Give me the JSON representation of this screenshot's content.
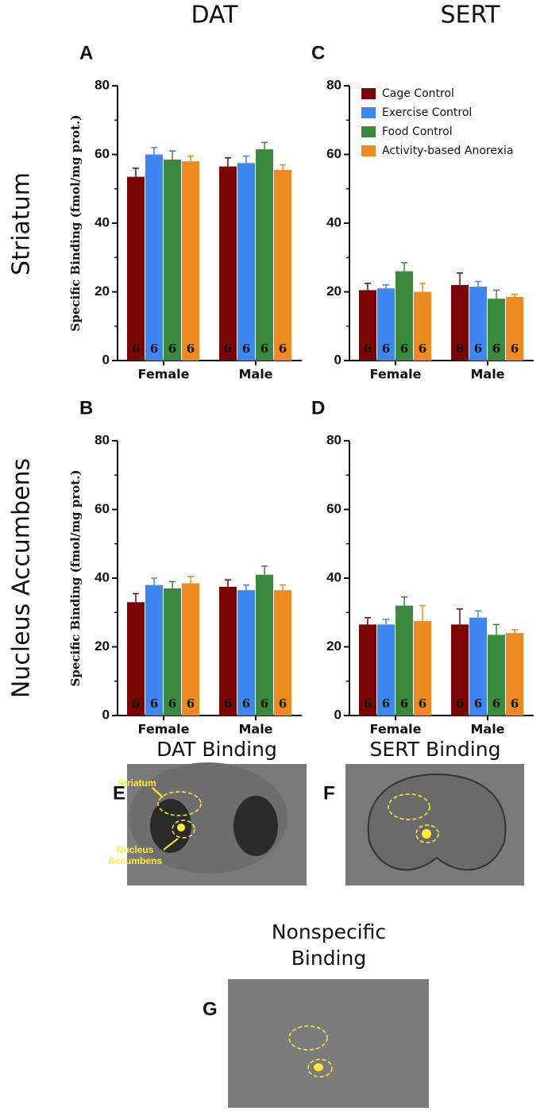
{
  "column_headers": [
    "DAT",
    "SERT"
  ],
  "row_headers": [
    "Striatum",
    "Nucleus Accumbens"
  ],
  "chart_data": [
    {
      "type": "bar",
      "panel": "A",
      "y_label": "Specific Binding (fmol/mg prot.)",
      "categories": [
        "Female",
        "Male"
      ],
      "ylim": [
        0,
        80
      ],
      "yticks": [
        0,
        20,
        40,
        60,
        80
      ],
      "yticks_minor": [
        10,
        30,
        50,
        70
      ],
      "series": [
        {
          "name": "Cage Control",
          "color": "#7b0505",
          "values": [
            53.5,
            56.5
          ],
          "errors": [
            2.5,
            2.5
          ],
          "n": [
            6,
            6
          ]
        },
        {
          "name": "Exercise Control",
          "color": "#3f86f3",
          "values": [
            60,
            57.5
          ],
          "errors": [
            2,
            2
          ],
          "n": [
            6,
            6
          ]
        },
        {
          "name": "Food Control",
          "color": "#3a893d",
          "values": [
            58.5,
            61.5
          ],
          "errors": [
            2.5,
            2
          ],
          "n": [
            6,
            6
          ]
        },
        {
          "name": "Activity-based Anorexia",
          "color": "#ef8a22",
          "values": [
            58,
            55.5
          ],
          "errors": [
            1.5,
            1.5
          ],
          "n": [
            6,
            6
          ]
        }
      ]
    },
    {
      "type": "bar",
      "panel": "B",
      "y_label": "Specific Binding (fmol/mg prot.)",
      "categories": [
        "Female",
        "Male"
      ],
      "ylim": [
        0,
        80
      ],
      "yticks": [
        0,
        20,
        40,
        60,
        80
      ],
      "yticks_minor": [
        10,
        30,
        50,
        70
      ],
      "series": [
        {
          "name": "Cage Control",
          "color": "#7b0505",
          "values": [
            33,
            37.5
          ],
          "errors": [
            2.5,
            2
          ],
          "n": [
            6,
            6
          ]
        },
        {
          "name": "Exercise Control",
          "color": "#3f86f3",
          "values": [
            38,
            36.5
          ],
          "errors": [
            2,
            1.5
          ],
          "n": [
            6,
            6
          ]
        },
        {
          "name": "Food Control",
          "color": "#3a893d",
          "values": [
            37,
            41
          ],
          "errors": [
            2,
            2.5
          ],
          "n": [
            6,
            6
          ]
        },
        {
          "name": "Activity-based Anorexia",
          "color": "#ef8a22",
          "values": [
            38.5,
            36.5
          ],
          "errors": [
            2,
            1.5
          ],
          "n": [
            6,
            6
          ]
        }
      ]
    },
    {
      "type": "bar",
      "panel": "C",
      "categories": [
        "Female",
        "Male"
      ],
      "legend": true,
      "legend_position": "top-right",
      "ylim": [
        0,
        80
      ],
      "yticks": [
        0,
        20,
        40,
        60,
        80
      ],
      "yticks_minor": [
        10,
        30,
        50,
        70
      ],
      "series": [
        {
          "name": "Cage Control",
          "color": "#7b0505",
          "values": [
            20.5,
            22
          ],
          "errors": [
            2,
            3.5
          ],
          "n": [
            6,
            6
          ]
        },
        {
          "name": "Exercise Control",
          "color": "#3f86f3",
          "values": [
            21,
            21.5
          ],
          "errors": [
            1,
            1.5
          ],
          "n": [
            6,
            6
          ]
        },
        {
          "name": "Food Control",
          "color": "#3a893d",
          "values": [
            26,
            18
          ],
          "errors": [
            2.5,
            2.5
          ],
          "n": [
            6,
            6
          ]
        },
        {
          "name": "Activity-based Anorexia",
          "color": "#ef8a22",
          "values": [
            20,
            18.5
          ],
          "errors": [
            2.5,
            0.8
          ],
          "n": [
            6,
            6
          ]
        }
      ]
    },
    {
      "type": "bar",
      "panel": "D",
      "categories": [
        "Female",
        "Male"
      ],
      "ylim": [
        0,
        80
      ],
      "yticks": [
        0,
        20,
        40,
        60,
        80
      ],
      "yticks_minor": [
        10,
        30,
        50,
        70
      ],
      "series": [
        {
          "name": "Cage Control",
          "color": "#7b0505",
          "values": [
            26.5,
            26.5
          ],
          "errors": [
            2,
            4.5
          ],
          "n": [
            6,
            6
          ]
        },
        {
          "name": "Exercise Control",
          "color": "#3f86f3",
          "values": [
            26.5,
            28.5
          ],
          "errors": [
            1.5,
            2
          ],
          "n": [
            6,
            6
          ]
        },
        {
          "name": "Food Control",
          "color": "#3a893d",
          "values": [
            32,
            23.5
          ],
          "errors": [
            2.5,
            3
          ],
          "n": [
            6,
            6
          ]
        },
        {
          "name": "Activity-based Anorexia",
          "color": "#ef8a22",
          "values": [
            27.5,
            24
          ],
          "errors": [
            4.5,
            1
          ],
          "n": [
            6,
            6
          ]
        }
      ]
    }
  ],
  "images": [
    {
      "panel": "E",
      "title_lines": [
        "DAT Binding"
      ],
      "striatum_label": "Striatum",
      "accumbens_label_lines": [
        "Nucleus",
        "Accumbens"
      ]
    },
    {
      "panel": "F",
      "title_lines": [
        "SERT Binding"
      ]
    },
    {
      "panel": "G",
      "title_lines": [
        "Nonspecific",
        "Binding"
      ]
    }
  ]
}
